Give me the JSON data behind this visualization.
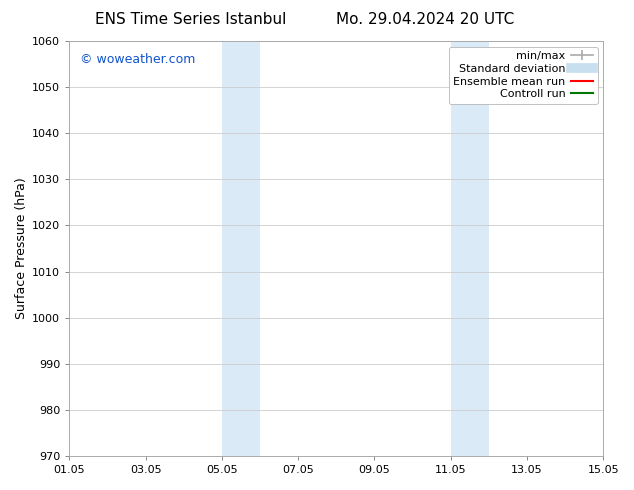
{
  "title_left": "ENS Time Series Istanbul",
  "title_right": "Mo. 29.04.2024 20 UTC",
  "ylabel": "Surface Pressure (hPa)",
  "ylim": [
    970,
    1060
  ],
  "yticks": [
    970,
    980,
    990,
    1000,
    1010,
    1020,
    1030,
    1040,
    1050,
    1060
  ],
  "xtick_labels": [
    "01.05",
    "03.05",
    "05.05",
    "07.05",
    "09.05",
    "11.05",
    "13.05",
    "15.05"
  ],
  "xtick_positions": [
    0,
    2,
    4,
    6,
    8,
    10,
    12,
    14
  ],
  "shaded_bands": [
    {
      "x_start": 4.0,
      "x_end": 5.0
    },
    {
      "x_start": 10.0,
      "x_end": 11.0
    }
  ],
  "shaded_color": "#daeaf7",
  "watermark_text": "© woweather.com",
  "watermark_color": "#1155cc",
  "legend_entries": [
    {
      "label": "min/max",
      "color": "#aaaaaa",
      "lw": 1.2,
      "style": "line_with_caps"
    },
    {
      "label": "Standard deviation",
      "color": "#c8dff0",
      "lw": 7,
      "style": "line"
    },
    {
      "label": "Ensemble mean run",
      "color": "#ff0000",
      "lw": 1.5,
      "style": "line"
    },
    {
      "label": "Controll run",
      "color": "#007700",
      "lw": 1.5,
      "style": "line"
    }
  ],
  "bg_color": "#ffffff",
  "grid_color": "#cccccc",
  "title_fontsize": 11,
  "tick_fontsize": 8,
  "legend_fontsize": 8,
  "watermark_fontsize": 9
}
